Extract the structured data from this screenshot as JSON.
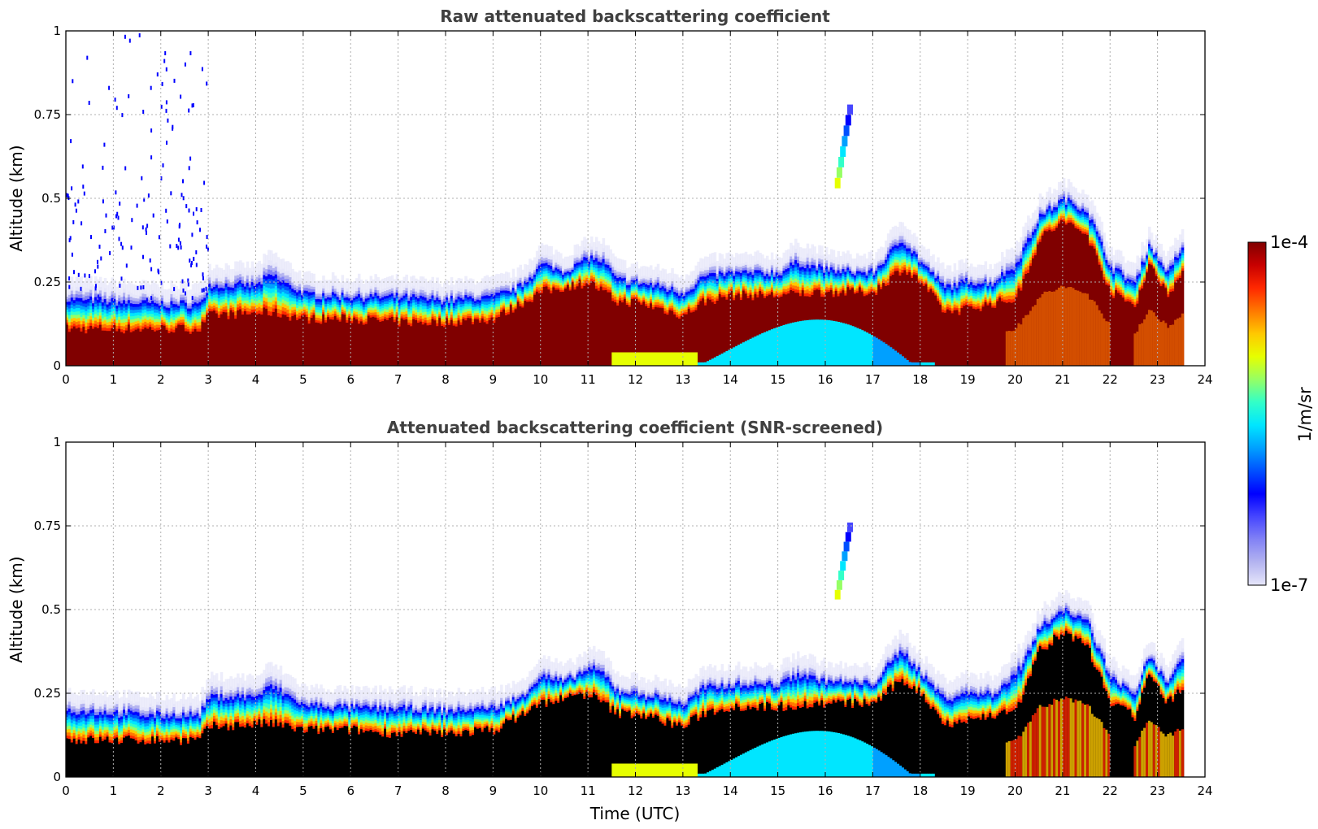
{
  "chart_data": [
    {
      "type": "heatmap",
      "title": "Raw attenuated backscattering coefficient",
      "xlabel": "",
      "ylabel": "Altitude (km)",
      "xlim": [
        0,
        24
      ],
      "ylim": [
        0,
        1
      ],
      "xticks": [
        "0",
        "1",
        "2",
        "3",
        "4",
        "5",
        "6",
        "7",
        "8",
        "9",
        "10",
        "11",
        "12",
        "13",
        "14",
        "15",
        "16",
        "17",
        "18",
        "19",
        "20",
        "21",
        "22",
        "23",
        "24"
      ],
      "yticks": [
        "0",
        "0.25",
        "0.5",
        "0.75",
        "1"
      ],
      "grid": true,
      "layer_top_km": [
        [
          0,
          0.23
        ],
        [
          1,
          0.22
        ],
        [
          2,
          0.21
        ],
        [
          2.8,
          0.21
        ],
        [
          3,
          0.27
        ],
        [
          4,
          0.27
        ],
        [
          4.3,
          0.31
        ],
        [
          5,
          0.24
        ],
        [
          6,
          0.23
        ],
        [
          7,
          0.23
        ],
        [
          8,
          0.22
        ],
        [
          9,
          0.23
        ],
        [
          9.5,
          0.25
        ],
        [
          10,
          0.33
        ],
        [
          10.5,
          0.3
        ],
        [
          11,
          0.35
        ],
        [
          11.3,
          0.34
        ],
        [
          11.6,
          0.28
        ],
        [
          12,
          0.27
        ],
        [
          12.5,
          0.26
        ],
        [
          13,
          0.24
        ],
        [
          13.4,
          0.29
        ],
        [
          14,
          0.3
        ],
        [
          15,
          0.3
        ],
        [
          15.4,
          0.34
        ],
        [
          16,
          0.31
        ],
        [
          16.5,
          0.3
        ],
        [
          17,
          0.3
        ],
        [
          17.6,
          0.41
        ],
        [
          18,
          0.33
        ],
        [
          18.5,
          0.26
        ],
        [
          19,
          0.28
        ],
        [
          19.5,
          0.27
        ],
        [
          20,
          0.34
        ],
        [
          20.5,
          0.47
        ],
        [
          21,
          0.52
        ],
        [
          21.5,
          0.49
        ],
        [
          22,
          0.32
        ],
        [
          22.5,
          0.27
        ],
        [
          22.8,
          0.38
        ],
        [
          23.2,
          0.3
        ],
        [
          23.5,
          0.38
        ]
      ],
      "dense_top_km": [
        [
          0,
          0.11
        ],
        [
          2.8,
          0.11
        ],
        [
          3,
          0.15
        ],
        [
          4.3,
          0.16
        ],
        [
          5,
          0.14
        ],
        [
          6,
          0.14
        ],
        [
          7,
          0.13
        ],
        [
          8,
          0.13
        ],
        [
          9,
          0.14
        ],
        [
          10,
          0.22
        ],
        [
          11,
          0.25
        ],
        [
          11.6,
          0.19
        ],
        [
          12,
          0.19
        ],
        [
          13,
          0.15
        ],
        [
          13.4,
          0.19
        ],
        [
          14,
          0.21
        ],
        [
          15,
          0.21
        ],
        [
          16,
          0.22
        ],
        [
          17,
          0.22
        ],
        [
          17.6,
          0.29
        ],
        [
          18,
          0.25
        ],
        [
          18.5,
          0.16
        ],
        [
          19,
          0.17
        ],
        [
          20,
          0.2
        ],
        [
          20.5,
          0.38
        ],
        [
          21,
          0.43
        ],
        [
          21.5,
          0.39
        ],
        [
          22,
          0.22
        ],
        [
          22.5,
          0.18
        ],
        [
          22.8,
          0.3
        ],
        [
          23.2,
          0.22
        ],
        [
          23.5,
          0.27
        ]
      ],
      "features": [
        {
          "name": "surface layer",
          "time": [
            13.3,
            18.3
          ],
          "altitude_km": [
            0,
            0.18
          ],
          "level": "mid (cyan)"
        },
        {
          "name": "isolated cloud",
          "time": [
            16.2,
            16.5
          ],
          "altitude_km": [
            0.53,
            0.78
          ],
          "level": "mid-high"
        }
      ]
    },
    {
      "type": "heatmap",
      "title": "Attenuated backscattering coefficient (SNR-screened)",
      "xlabel": "Time (UTC)",
      "ylabel": "Altitude (km)",
      "xlim": [
        0,
        24
      ],
      "ylim": [
        0,
        1
      ],
      "xticks": [
        "0",
        "1",
        "2",
        "3",
        "4",
        "5",
        "6",
        "7",
        "8",
        "9",
        "10",
        "11",
        "12",
        "13",
        "14",
        "15",
        "16",
        "17",
        "18",
        "19",
        "20",
        "21",
        "22",
        "23",
        "24"
      ],
      "yticks": [
        "0",
        "0.25",
        "0.5",
        "0.75",
        "1"
      ],
      "grid": true,
      "screened_fill": "#000000",
      "features": [
        {
          "name": "surface layer",
          "time": [
            13.3,
            18.3
          ],
          "altitude_km": [
            0,
            0.18
          ],
          "level": "mid (cyan)"
        },
        {
          "name": "isolated cloud",
          "time": [
            16.2,
            16.5
          ],
          "altitude_km": [
            0.53,
            0.76
          ],
          "level": "mid-high"
        }
      ]
    }
  ],
  "colorbar": {
    "label": "1/m/sr",
    "max_label": "1e-4",
    "min_label": "1e-7",
    "colormap": "jet with light-blue low end",
    "colors": [
      "#e6e6fa",
      "#b4b4f0",
      "#8282f5",
      "#4646ff",
      "#0000ff",
      "#0050ff",
      "#00a0ff",
      "#00e6ff",
      "#32ffc8",
      "#96ff64",
      "#e6ff00",
      "#ffc800",
      "#ff7800",
      "#ff2800",
      "#c80000",
      "#800000"
    ]
  }
}
